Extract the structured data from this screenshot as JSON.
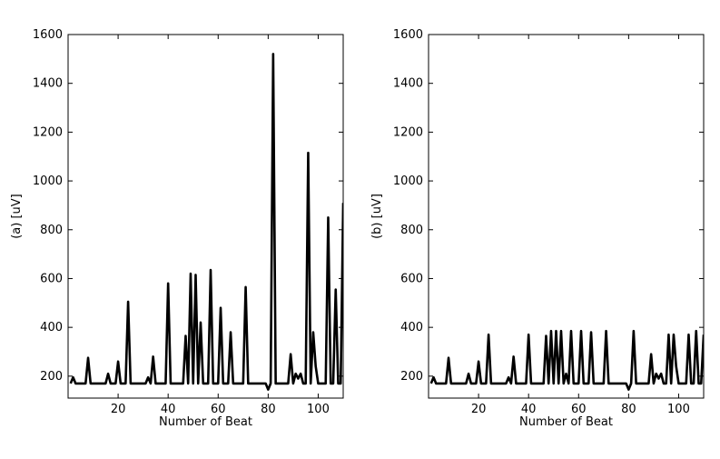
{
  "chart_data": [
    {
      "type": "line",
      "panel": "a",
      "xlabel": "Number of Beat",
      "ylabel": "(a) [uV]",
      "xlim": [
        0,
        110
      ],
      "ylim": [
        110,
        1600
      ],
      "xticks": [
        20,
        40,
        60,
        80,
        100
      ],
      "yticks": [
        200,
        400,
        600,
        800,
        1000,
        1200,
        1400,
        1600
      ],
      "grid": false,
      "series": [
        {
          "color": "#000000",
          "x": [
            1,
            2,
            3,
            4,
            5,
            6,
            7,
            8,
            9,
            10,
            11,
            12,
            13,
            14,
            15,
            16,
            17,
            18,
            19,
            20,
            21,
            22,
            23,
            24,
            25,
            26,
            27,
            28,
            29,
            30,
            31,
            32,
            33,
            34,
            35,
            36,
            37,
            38,
            39,
            40,
            41,
            42,
            43,
            44,
            45,
            46,
            47,
            48,
            49,
            50,
            51,
            52,
            53,
            54,
            55,
            56,
            57,
            58,
            59,
            60,
            61,
            62,
            63,
            64,
            65,
            66,
            67,
            68,
            69,
            70,
            71,
            72,
            73,
            74,
            75,
            76,
            77,
            78,
            79,
            80,
            81,
            82,
            83,
            84,
            85,
            86,
            87,
            88,
            89,
            90,
            91,
            92,
            93,
            94,
            95,
            96,
            97,
            98,
            99,
            100,
            101,
            102,
            103,
            104,
            105,
            106,
            107,
            108,
            109,
            110
          ],
          "values": [
            170,
            195,
            170,
            170,
            170,
            170,
            170,
            275,
            170,
            170,
            170,
            170,
            170,
            170,
            170,
            210,
            170,
            170,
            170,
            260,
            170,
            170,
            170,
            505,
            170,
            170,
            170,
            170,
            170,
            170,
            170,
            195,
            170,
            280,
            170,
            170,
            170,
            170,
            170,
            580,
            170,
            170,
            170,
            170,
            170,
            170,
            365,
            170,
            620,
            170,
            615,
            170,
            420,
            170,
            170,
            170,
            635,
            170,
            170,
            170,
            480,
            170,
            170,
            170,
            380,
            170,
            170,
            170,
            170,
            170,
            565,
            170,
            170,
            170,
            170,
            170,
            170,
            170,
            170,
            145,
            170,
            1520,
            170,
            170,
            170,
            170,
            170,
            170,
            290,
            170,
            210,
            190,
            210,
            170,
            170,
            1115,
            170,
            380,
            240,
            170,
            170,
            170,
            170,
            850,
            170,
            170,
            555,
            170,
            170,
            910
          ]
        }
      ]
    },
    {
      "type": "line",
      "panel": "b",
      "xlabel": "Number of Beat",
      "ylabel": "(b) [uV]",
      "xlim": [
        0,
        110
      ],
      "ylim": [
        110,
        1600
      ],
      "xticks": [
        20,
        40,
        60,
        80,
        100
      ],
      "yticks": [
        200,
        400,
        600,
        800,
        1000,
        1200,
        1400,
        1600
      ],
      "grid": false,
      "series": [
        {
          "color": "#000000",
          "x": [
            1,
            2,
            3,
            4,
            5,
            6,
            7,
            8,
            9,
            10,
            11,
            12,
            13,
            14,
            15,
            16,
            17,
            18,
            19,
            20,
            21,
            22,
            23,
            24,
            25,
            26,
            27,
            28,
            29,
            30,
            31,
            32,
            33,
            34,
            35,
            36,
            37,
            38,
            39,
            40,
            41,
            42,
            43,
            44,
            45,
            46,
            47,
            48,
            49,
            50,
            51,
            52,
            53,
            54,
            55,
            56,
            57,
            58,
            59,
            60,
            61,
            62,
            63,
            64,
            65,
            66,
            67,
            68,
            69,
            70,
            71,
            72,
            73,
            74,
            75,
            76,
            77,
            78,
            79,
            80,
            81,
            82,
            83,
            84,
            85,
            86,
            87,
            88,
            89,
            90,
            91,
            92,
            93,
            94,
            95,
            96,
            97,
            98,
            99,
            100,
            101,
            102,
            103,
            104,
            105,
            106,
            107,
            108,
            109,
            110
          ],
          "values": [
            170,
            195,
            170,
            170,
            170,
            170,
            170,
            275,
            170,
            170,
            170,
            170,
            170,
            170,
            170,
            210,
            170,
            170,
            170,
            260,
            170,
            170,
            170,
            370,
            170,
            170,
            170,
            170,
            170,
            170,
            170,
            195,
            170,
            280,
            170,
            170,
            170,
            170,
            170,
            370,
            170,
            170,
            170,
            170,
            170,
            170,
            365,
            170,
            385,
            170,
            385,
            170,
            385,
            170,
            210,
            170,
            385,
            170,
            170,
            170,
            385,
            170,
            170,
            170,
            380,
            170,
            170,
            170,
            170,
            170,
            385,
            170,
            170,
            170,
            170,
            170,
            170,
            170,
            170,
            145,
            170,
            385,
            170,
            170,
            170,
            170,
            170,
            170,
            290,
            170,
            210,
            190,
            210,
            170,
            170,
            370,
            170,
            370,
            240,
            170,
            170,
            170,
            170,
            370,
            170,
            170,
            385,
            170,
            170,
            370
          ]
        }
      ]
    }
  ]
}
